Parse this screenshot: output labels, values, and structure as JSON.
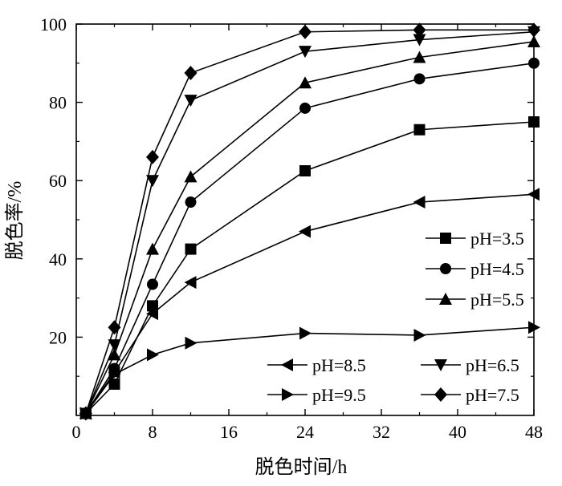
{
  "chart_data": {
    "type": "line",
    "title": "",
    "xlabel": "脱色时间/h",
    "ylabel": "脱色率/%",
    "xlim": [
      0,
      48
    ],
    "ylim": [
      0,
      100
    ],
    "xticks": [
      0,
      8,
      16,
      24,
      32,
      40,
      48
    ],
    "yticks": [
      20,
      40,
      60,
      80,
      100
    ],
    "x": [
      1,
      4,
      8,
      12,
      24,
      36,
      48
    ],
    "grid": false,
    "legend_position": "right (two blocks: upper-right and lower)",
    "series": [
      {
        "name": "pH=3.5",
        "marker": "square",
        "values": [
          0.5,
          8,
          28,
          42.5,
          62.5,
          73,
          75
        ]
      },
      {
        "name": "pH=4.5",
        "marker": "circle",
        "values": [
          0.5,
          12,
          33.5,
          54.5,
          78.5,
          86,
          90
        ]
      },
      {
        "name": "pH=5.5",
        "marker": "triangle-up",
        "values": [
          0.5,
          15.5,
          42.5,
          61,
          85,
          91.5,
          95.5
        ]
      },
      {
        "name": "pH=6.5",
        "marker": "triangle-down",
        "values": [
          0.5,
          18,
          60,
          80.5,
          93,
          96,
          98
        ]
      },
      {
        "name": "pH=7.5",
        "marker": "diamond",
        "values": [
          0.5,
          22.5,
          66,
          87.5,
          98,
          98.5,
          98.5
        ]
      },
      {
        "name": "pH=8.5",
        "marker": "triangle-left",
        "values": [
          0.5,
          11,
          26,
          34,
          47,
          54.5,
          56.5
        ]
      },
      {
        "name": "pH=9.5",
        "marker": "triangle-right",
        "values": [
          0.5,
          10.5,
          15.5,
          18.5,
          21,
          20.5,
          22.5
        ]
      }
    ],
    "legend": [
      {
        "series": 0,
        "block": "right"
      },
      {
        "series": 1,
        "block": "right"
      },
      {
        "series": 2,
        "block": "right"
      },
      {
        "series": 5,
        "block": "bottom-left"
      },
      {
        "series": 6,
        "block": "bottom-left"
      },
      {
        "series": 3,
        "block": "bottom-right"
      },
      {
        "series": 4,
        "block": "bottom-right"
      }
    ]
  }
}
